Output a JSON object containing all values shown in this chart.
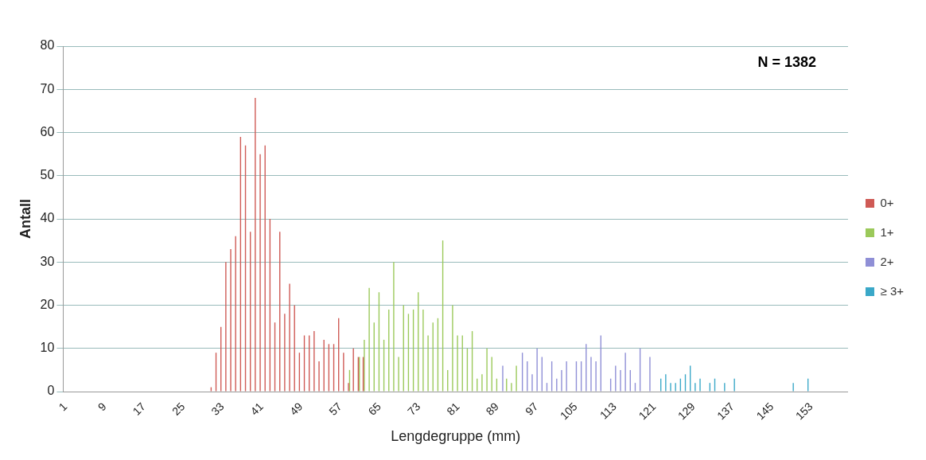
{
  "chart_data": {
    "type": "bar",
    "xlabel": "Lengdegruppe (mm)",
    "ylabel": "Antall",
    "annotations": [
      "N = 1382"
    ],
    "categories": [
      "1",
      null,
      null,
      null,
      null,
      null,
      null,
      null,
      "9",
      null,
      null,
      null,
      null,
      null,
      null,
      null,
      "17",
      null,
      null,
      null,
      null,
      null,
      null,
      null,
      "25",
      null,
      null,
      null,
      null,
      null,
      null,
      null,
      "33",
      null,
      null,
      null,
      null,
      null,
      null,
      null,
      "41",
      null,
      null,
      null,
      null,
      null,
      null,
      null,
      "49",
      null,
      null,
      null,
      null,
      null,
      null,
      null,
      "57",
      null,
      null,
      null,
      null,
      null,
      null,
      null,
      "65",
      null,
      null,
      null,
      null,
      null,
      null,
      null,
      "73",
      null,
      null,
      null,
      null,
      null,
      null,
      null,
      "81",
      null,
      null,
      null,
      null,
      null,
      null,
      null,
      "89",
      null,
      null,
      null,
      null,
      null,
      null,
      null,
      "97",
      null,
      null,
      null,
      null,
      null,
      null,
      null,
      "105",
      null,
      null,
      null,
      null,
      null,
      null,
      null,
      "113",
      null,
      null,
      null,
      null,
      null,
      null,
      null,
      "121",
      null,
      null,
      null,
      null,
      null,
      null,
      null,
      "129",
      null,
      null,
      null,
      null,
      null,
      null,
      null,
      "137",
      null,
      null,
      null,
      null,
      null,
      null,
      null,
      "145",
      null,
      null,
      null,
      null,
      null,
      null,
      null,
      "153",
      null,
      null,
      null,
      null,
      null,
      null,
      null
    ],
    "series": [
      {
        "name": "0+",
        "color": "#cf5a55",
        "values": [
          null,
          null,
          null,
          null,
          null,
          null,
          null,
          null,
          null,
          null,
          null,
          null,
          null,
          null,
          null,
          null,
          null,
          null,
          null,
          null,
          null,
          null,
          null,
          null,
          null,
          null,
          null,
          null,
          null,
          null,
          1,
          9,
          15,
          30,
          33,
          36,
          59,
          57,
          37,
          68,
          55,
          57,
          40,
          16,
          37,
          18,
          25,
          20,
          9,
          13,
          13,
          14,
          7,
          12,
          11,
          11,
          17,
          9,
          2,
          10,
          8,
          8,
          null,
          null,
          null,
          null,
          null,
          null,
          null,
          null,
          null,
          null,
          null,
          null,
          null,
          null,
          null,
          null,
          null,
          null,
          null,
          null,
          null,
          null,
          null,
          null,
          null,
          null,
          null,
          null,
          null,
          null,
          null,
          null,
          null,
          null,
          null,
          null,
          null,
          null,
          null,
          null,
          null,
          null,
          null,
          null,
          null,
          null,
          null,
          null,
          null,
          null,
          null,
          null,
          null,
          null,
          null,
          null,
          null,
          null,
          null,
          null,
          null,
          null,
          null,
          null,
          null,
          null,
          null,
          null,
          null,
          null,
          null,
          null,
          null,
          null,
          null,
          null,
          null,
          null,
          null,
          null,
          null,
          null,
          null,
          null,
          null,
          null,
          null,
          null,
          null,
          null,
          null,
          null,
          null,
          null,
          null,
          null,
          null,
          null
        ]
      },
      {
        "name": "1+",
        "color": "#9bc95a",
        "values": [
          null,
          null,
          null,
          null,
          null,
          null,
          null,
          null,
          null,
          null,
          null,
          null,
          null,
          null,
          null,
          null,
          null,
          null,
          null,
          null,
          null,
          null,
          null,
          null,
          null,
          null,
          null,
          null,
          null,
          null,
          null,
          null,
          null,
          null,
          null,
          null,
          null,
          null,
          null,
          null,
          null,
          null,
          null,
          null,
          null,
          null,
          null,
          null,
          null,
          null,
          null,
          null,
          null,
          null,
          null,
          null,
          null,
          null,
          5,
          null,
          8,
          12,
          24,
          16,
          23,
          12,
          19,
          30,
          8,
          20,
          18,
          19,
          23,
          19,
          13,
          16,
          17,
          35,
          5,
          20,
          13,
          13,
          10,
          14,
          3,
          4,
          10,
          8,
          3,
          null,
          3,
          2,
          6,
          null,
          null,
          null,
          null,
          null,
          null,
          null,
          null,
          null,
          null,
          null,
          null,
          null,
          null,
          null,
          null,
          null,
          null,
          null,
          null,
          null,
          null,
          null,
          null,
          null,
          null,
          null,
          null,
          null,
          null,
          null,
          null,
          null,
          null,
          null,
          null,
          null,
          null,
          null,
          null,
          null,
          null,
          null,
          null,
          null,
          null,
          null,
          null,
          null,
          null,
          null,
          null,
          null,
          null,
          null,
          null,
          null,
          null,
          null,
          null,
          null,
          null,
          null,
          null,
          null,
          null,
          null
        ]
      },
      {
        "name": "2+",
        "color": "#8f8fd6",
        "values": [
          null,
          null,
          null,
          null,
          null,
          null,
          null,
          null,
          null,
          null,
          null,
          null,
          null,
          null,
          null,
          null,
          null,
          null,
          null,
          null,
          null,
          null,
          null,
          null,
          null,
          null,
          null,
          null,
          null,
          null,
          null,
          null,
          null,
          null,
          null,
          null,
          null,
          null,
          null,
          null,
          null,
          null,
          null,
          null,
          null,
          null,
          null,
          null,
          null,
          null,
          null,
          null,
          null,
          null,
          null,
          null,
          null,
          null,
          null,
          null,
          null,
          null,
          null,
          null,
          null,
          null,
          null,
          null,
          null,
          null,
          null,
          null,
          null,
          null,
          null,
          null,
          null,
          null,
          null,
          null,
          null,
          null,
          null,
          null,
          null,
          null,
          null,
          null,
          null,
          6,
          null,
          null,
          null,
          9,
          7,
          4,
          10,
          8,
          2,
          7,
          3,
          5,
          7,
          null,
          7,
          7,
          11,
          8,
          7,
          13,
          null,
          3,
          6,
          5,
          9,
          5,
          2,
          10,
          null,
          8,
          null,
          null,
          null,
          null,
          null,
          null,
          null,
          null,
          null,
          null,
          null,
          null,
          null,
          null,
          null,
          null,
          null,
          null,
          null,
          null,
          null,
          null,
          null,
          null,
          null,
          null,
          null,
          null,
          null,
          null,
          null,
          null,
          null,
          null,
          null,
          null,
          null,
          null,
          null,
          null
        ]
      },
      {
        "name": "≥ 3+",
        "color": "#3aa8c8",
        "values": [
          null,
          null,
          null,
          null,
          null,
          null,
          null,
          null,
          null,
          null,
          null,
          null,
          null,
          null,
          null,
          null,
          null,
          null,
          null,
          null,
          null,
          null,
          null,
          null,
          null,
          null,
          null,
          null,
          null,
          null,
          null,
          null,
          null,
          null,
          null,
          null,
          null,
          null,
          null,
          null,
          null,
          null,
          null,
          null,
          null,
          null,
          null,
          null,
          null,
          null,
          null,
          null,
          null,
          null,
          null,
          null,
          null,
          null,
          null,
          null,
          null,
          null,
          null,
          null,
          null,
          null,
          null,
          null,
          null,
          null,
          null,
          null,
          null,
          null,
          null,
          null,
          null,
          null,
          null,
          null,
          null,
          null,
          null,
          null,
          null,
          null,
          null,
          null,
          null,
          null,
          null,
          null,
          null,
          null,
          null,
          null,
          null,
          null,
          null,
          null,
          null,
          null,
          null,
          null,
          null,
          null,
          null,
          null,
          null,
          null,
          null,
          null,
          null,
          null,
          null,
          null,
          null,
          null,
          null,
          null,
          null,
          3,
          4,
          2,
          2,
          3,
          4,
          6,
          2,
          3,
          null,
          2,
          3,
          null,
          2,
          null,
          3,
          null,
          null,
          null,
          null,
          null,
          null,
          null,
          null,
          null,
          null,
          null,
          2,
          null,
          null,
          3,
          null,
          null,
          null,
          null,
          null,
          null,
          null,
          null
        ]
      }
    ],
    "ylim": [
      0,
      80
    ],
    "yticks": [
      0,
      10,
      20,
      30,
      40,
      50,
      60,
      70,
      80
    ],
    "grid": "y",
    "legend": "right"
  }
}
